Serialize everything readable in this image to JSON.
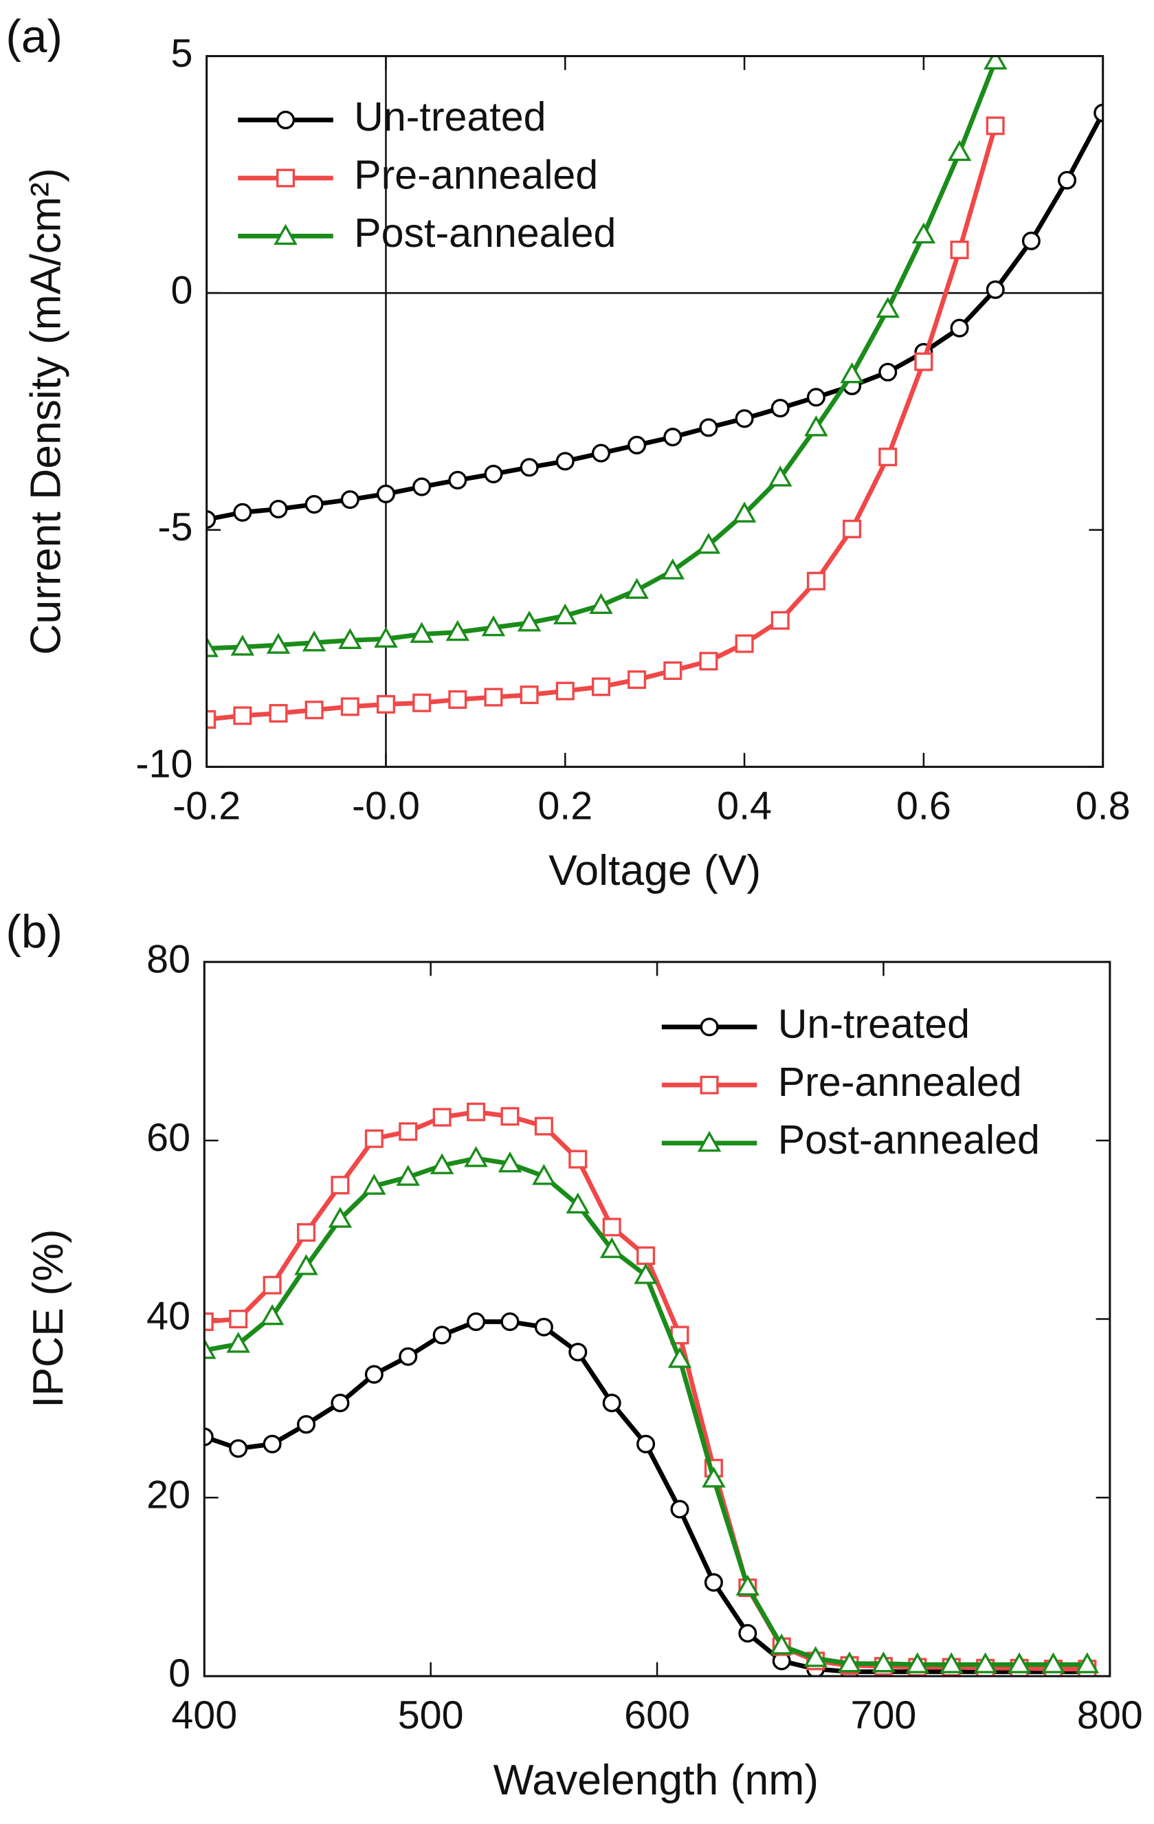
{
  "chart_data": [
    {
      "type": "line",
      "label": "(a)",
      "xlabel": "Voltage (V)",
      "ylabel": "Current Density (mA/cm²)",
      "x": [
        -0.2,
        -0.16,
        -0.12,
        -0.08,
        -0.04,
        0,
        0.04,
        0.08,
        0.12,
        0.16,
        0.2,
        0.24,
        0.28,
        0.32,
        0.36,
        0.4,
        0.44,
        0.48,
        0.52,
        0.56,
        0.6,
        0.64,
        0.68,
        0.72,
        0.76,
        0.8
      ],
      "series": [
        {
          "name": "Un-treated",
          "color": "#000000",
          "marker": "circle",
          "values": [
            -4.78,
            -4.63,
            -4.56,
            -4.46,
            -4.36,
            -4.24,
            -4.09,
            -3.95,
            -3.82,
            -3.68,
            -3.55,
            -3.38,
            -3.21,
            -3.04,
            -2.84,
            -2.65,
            -2.43,
            -2.2,
            -1.96,
            -1.67,
            -1.25,
            -0.74,
            0.07,
            1.1,
            2.38,
            3.8
          ]
        },
        {
          "name": "Pre-annealed",
          "color": "#f04848",
          "marker": "square",
          "values": [
            -9.0,
            -8.92,
            -8.87,
            -8.8,
            -8.73,
            -8.68,
            -8.65,
            -8.58,
            -8.53,
            -8.48,
            -8.4,
            -8.31,
            -8.16,
            -7.97,
            -7.77,
            -7.4,
            -6.91,
            -6.08,
            -4.98,
            -3.46,
            -1.45,
            0.91,
            3.53,
            null,
            null,
            null
          ]
        },
        {
          "name": "Post-annealed",
          "color": "#1a8c1a",
          "marker": "triangle",
          "values": [
            -7.5,
            -7.47,
            -7.43,
            -7.38,
            -7.33,
            -7.3,
            -7.2,
            -7.16,
            -7.06,
            -6.96,
            -6.81,
            -6.59,
            -6.27,
            -5.86,
            -5.32,
            -4.66,
            -3.9,
            -2.84,
            -1.72,
            -0.34,
            1.23,
            2.97,
            4.9,
            null,
            null,
            null
          ]
        }
      ],
      "xlim": [
        -0.2,
        0.8
      ],
      "xticks": [
        -0.2,
        {
          "value": 0,
          "label": "-0.0"
        },
        0.2,
        0.4,
        0.6,
        0.8
      ],
      "ylim": [
        -10,
        5
      ],
      "yticks": [
        -10,
        -5,
        0,
        5
      ],
      "zero_lines": true,
      "legend": "upper left"
    },
    {
      "type": "line",
      "label": "(b)",
      "xlabel": "Wavelength (nm)",
      "ylabel": "IPCE (%)",
      "x": [
        400,
        415,
        430,
        445,
        460,
        475,
        490,
        505,
        520,
        535,
        550,
        565,
        580,
        595,
        610,
        625,
        640,
        655,
        670,
        685,
        700,
        715,
        730,
        745,
        760,
        775,
        790
      ],
      "series": [
        {
          "name": "Un-treated",
          "color": "#000000",
          "marker": "circle",
          "values": [
            26.8,
            25.5,
            26,
            28.2,
            30.6,
            33.8,
            35.8,
            38.2,
            39.7,
            39.7,
            39.1,
            36.3,
            30.6,
            26,
            18.7,
            10.5,
            4.8,
            1.7,
            0.8,
            0.5,
            0.5,
            0.5,
            0.5,
            0.5,
            0.5,
            0.5,
            0.5
          ]
        },
        {
          "name": "Pre-annealed",
          "color": "#f04848",
          "marker": "square",
          "values": [
            39.7,
            40,
            43.8,
            49.7,
            55,
            60.2,
            61,
            62.6,
            63.2,
            62.7,
            61.6,
            57.9,
            50.3,
            47.1,
            38.2,
            23.3,
            9.9,
            3.3,
            1.7,
            1.2,
            1.1,
            1,
            1,
            0.9,
            0.9,
            0.8,
            0.8
          ]
        },
        {
          "name": "Post-annealed",
          "color": "#1a8c1a",
          "marker": "triangle",
          "values": [
            36.5,
            37.2,
            40.3,
            45.9,
            51.2,
            54.9,
            55.9,
            57.2,
            58,
            57.4,
            56,
            52.8,
            47.8,
            44.9,
            35.5,
            22.1,
            10,
            3.4,
            2,
            1.4,
            1.4,
            1.3,
            1.3,
            1.3,
            1.3,
            1.3,
            1.3
          ]
        }
      ],
      "xlim": [
        400,
        800
      ],
      "xticks": [
        400,
        500,
        600,
        700,
        800
      ],
      "ylim": [
        0,
        80
      ],
      "yticks": [
        0,
        20,
        40,
        60,
        80
      ],
      "zero_lines": false,
      "legend": "upper right"
    }
  ]
}
